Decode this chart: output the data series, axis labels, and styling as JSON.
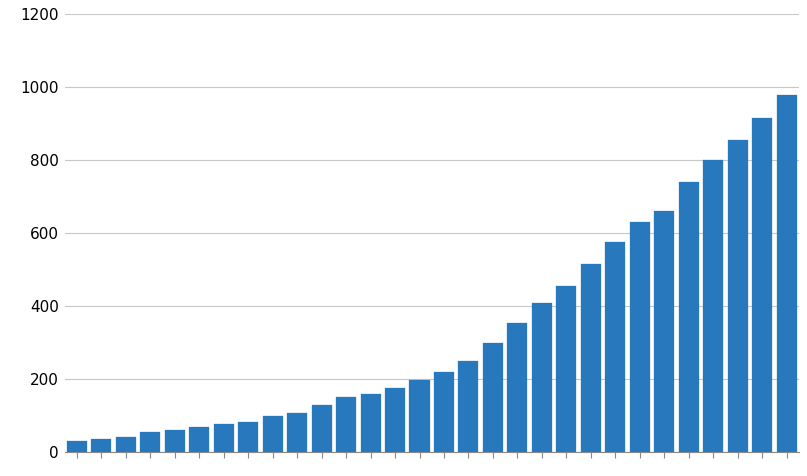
{
  "values": [
    30,
    35,
    42,
    55,
    60,
    70,
    78,
    83,
    100,
    108,
    128,
    150,
    160,
    175,
    198,
    220,
    250,
    300,
    355,
    408,
    455,
    515,
    575,
    630,
    660,
    740,
    800,
    855,
    915,
    978
  ],
  "bar_color": "#2878be",
  "ylim": [
    0,
    1200
  ],
  "yticks": [
    0,
    200,
    400,
    600,
    800,
    1000,
    1200
  ],
  "background_color": "#ffffff",
  "grid_color": "#c8c8c8",
  "edge_color": "#2878be",
  "bar_width": 0.82
}
